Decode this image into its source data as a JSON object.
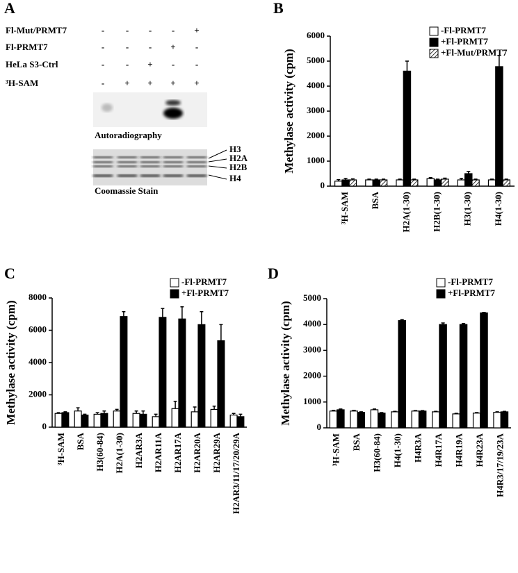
{
  "panel_a": {
    "label": "A",
    "rows": [
      {
        "name": "Fl-Mut/PRMT7",
        "signs": [
          "-",
          "-",
          "-",
          "-",
          "+"
        ]
      },
      {
        "name": "Fl-PRMT7",
        "signs": [
          "-",
          "-",
          "-",
          "+",
          "-"
        ]
      },
      {
        "name": "HeLa S3-Ctrl",
        "signs": [
          "-",
          "-",
          "+",
          "-",
          "-"
        ]
      },
      {
        "name": "³H-SAM",
        "signs": [
          "-",
          "+",
          "+",
          "+",
          "+"
        ]
      }
    ],
    "gel_labels": [
      "Autoradiography",
      "Coomassie Stain"
    ],
    "bands": [
      "H3",
      "H2A",
      "H2B",
      "H4"
    ]
  },
  "chart_data": [
    {
      "type": "bar",
      "panel_label": "B",
      "y_label": "Methylase activity (cpm)",
      "categories": [
        "³H-SAM",
        "BSA",
        "H2A(1-30)",
        "H2B(1-30)",
        "H3(1-30)",
        "H4(1-30)"
      ],
      "series": [
        {
          "name": "-Fl-PRMT7",
          "color": "#ffffff",
          "values": [
            200,
            250,
            250,
            300,
            250,
            250
          ],
          "errors": [
            60,
            30,
            30,
            40,
            60,
            30
          ]
        },
        {
          "name": "+Fl-PRMT7",
          "color": "#000000",
          "values": [
            250,
            250,
            4600,
            250,
            500,
            4780
          ],
          "errors": [
            60,
            30,
            400,
            30,
            90,
            450
          ]
        },
        {
          "name": "+Fl-Mut/PRMT7",
          "color": "#ffffff",
          "hatch": true,
          "values": [
            250,
            250,
            250,
            280,
            250,
            250
          ],
          "errors": [
            40,
            30,
            30,
            40,
            30,
            30
          ]
        }
      ],
      "ylim": [
        0,
        6000
      ],
      "yticks": [
        0,
        1000,
        2000,
        3000,
        4000,
        5000,
        6000
      ],
      "legend": "top-right"
    },
    {
      "type": "bar",
      "panel_label": "C",
      "y_label": "Methylase activity (cpm)",
      "categories": [
        "³H-SAM",
        "BSA",
        "H3(60-84)",
        "H2A(1-30)",
        "H2AR3A",
        "H2AR11A",
        "H2AR17A",
        "H2AR20A",
        "H2AR29A",
        "H2AR3/11/17/20/29A"
      ],
      "series": [
        {
          "name": "-Fl-PRMT7",
          "color": "#ffffff",
          "values": [
            850,
            1000,
            800,
            1000,
            850,
            650,
            1150,
            950,
            1100,
            750
          ],
          "errors": [
            50,
            200,
            100,
            100,
            150,
            150,
            450,
            300,
            200,
            100
          ]
        },
        {
          "name": "+Fl-PRMT7",
          "color": "#000000",
          "values": [
            900,
            750,
            850,
            6850,
            800,
            6800,
            6700,
            6350,
            5350,
            650
          ],
          "errors": [
            50,
            50,
            150,
            300,
            200,
            550,
            750,
            800,
            1000,
            150
          ]
        }
      ],
      "ylim": [
        0,
        8000
      ],
      "yticks": [
        0,
        2000,
        4000,
        6000,
        8000
      ],
      "legend": "top-right"
    },
    {
      "type": "bar",
      "panel_label": "D",
      "y_label": "Methylase activity (cpm)",
      "categories": [
        "³H-SAM",
        "BSA",
        "H3(60-84)",
        "H4(1-30)",
        "H4R3A",
        "H4R17A",
        "H4R19A",
        "H4R23A",
        "H4R3/17/19/23A"
      ],
      "series": [
        {
          "name": "-Fl-PRMT7",
          "color": "#ffffff",
          "values": [
            650,
            650,
            700,
            620,
            650,
            620,
            540,
            570,
            600
          ],
          "errors": [
            30,
            30,
            30,
            20,
            20,
            20,
            20,
            20,
            20
          ]
        },
        {
          "name": "+Fl-PRMT7",
          "color": "#000000",
          "values": [
            700,
            600,
            570,
            4150,
            650,
            4000,
            4000,
            4450,
            620
          ],
          "errors": [
            30,
            20,
            20,
            40,
            20,
            60,
            40,
            20,
            20
          ]
        }
      ],
      "ylim": [
        0,
        5000
      ],
      "yticks": [
        0,
        1000,
        2000,
        3000,
        4000,
        5000
      ],
      "legend": "top-right"
    }
  ]
}
